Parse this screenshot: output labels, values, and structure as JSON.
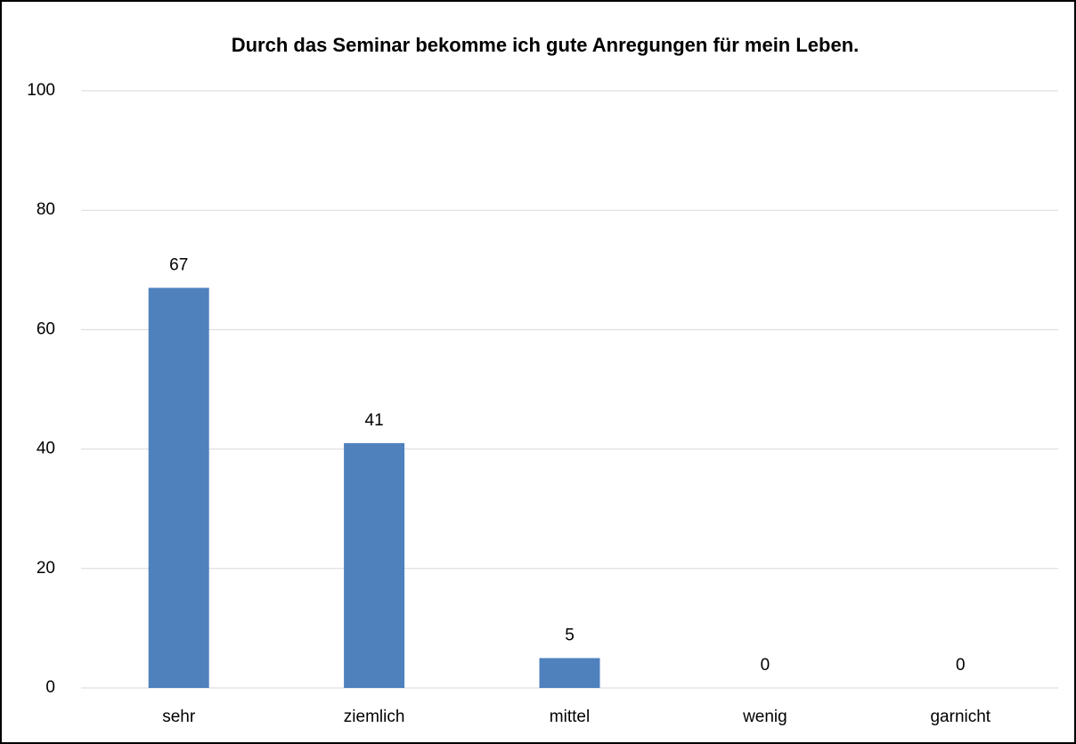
{
  "chart_data": {
    "type": "bar",
    "title": "Durch das Seminar bekomme ich gute Anregungen für mein Leben.",
    "categories": [
      "sehr",
      "ziemlich",
      "mittel",
      "wenig",
      "garnicht"
    ],
    "values": [
      67,
      41,
      5,
      0,
      0
    ],
    "color": "#4f81bd",
    "ylim": [
      0,
      100
    ],
    "yticks": [
      0,
      20,
      40,
      60,
      80,
      100
    ],
    "grid": true
  }
}
